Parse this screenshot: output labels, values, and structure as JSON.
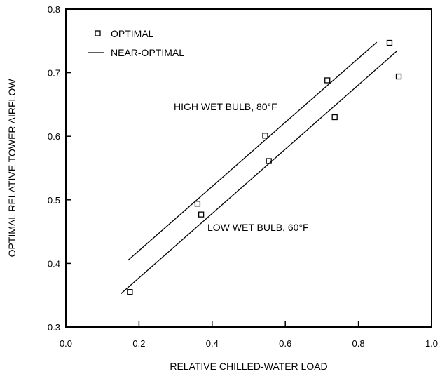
{
  "chart_data": {
    "type": "scatter",
    "title": "",
    "xlabel": "RELATIVE CHILLED-WATER LOAD",
    "ylabel": "OPTIMAL RELATIVE TOWER AIRFLOW",
    "xlim": [
      0.0,
      1.0
    ],
    "ylim": [
      0.3,
      0.8
    ],
    "xticks": [
      0.0,
      0.2,
      0.4,
      0.6,
      0.8,
      1.0
    ],
    "xtick_labels": [
      "0.0",
      "0.2",
      "0.4",
      "0.6",
      "0.8",
      "1.0"
    ],
    "yticks": [
      0.3,
      0.4,
      0.5,
      0.6,
      0.7,
      0.8
    ],
    "ytick_labels": [
      "0.3",
      "0.4",
      "0.5",
      "0.6",
      "0.7",
      "0.8"
    ],
    "grid": false,
    "legend_position": "top-left",
    "legend": [
      {
        "label": "OPTIMAL",
        "marker": "square"
      },
      {
        "label": "NEAR-OPTIMAL",
        "marker": "line"
      }
    ],
    "series": [
      {
        "name": "OPTIMAL",
        "kind": "points",
        "x": [
          0.175,
          0.36,
          0.37,
          0.545,
          0.555,
          0.715,
          0.735,
          0.885,
          0.91
        ],
        "y": [
          0.355,
          0.494,
          0.477,
          0.601,
          0.561,
          0.688,
          0.63,
          0.747,
          0.694
        ]
      },
      {
        "name": "NEAR-OPTIMAL",
        "kind": "line",
        "label": "HIGH WET BULB, 80°F",
        "x": [
          0.17,
          0.85
        ],
        "y": [
          0.405,
          0.748
        ]
      },
      {
        "name": "NEAR-OPTIMAL",
        "kind": "line",
        "label": "LOW WET BULB, 60°F",
        "x": [
          0.15,
          0.905
        ],
        "y": [
          0.352,
          0.734
        ]
      }
    ],
    "annotations": [
      {
        "text": "HIGH WET BULB, 80°F",
        "x": 0.29,
        "y": 0.645
      },
      {
        "text": "LOW WET BULB, 60°F",
        "x": 0.385,
        "y": 0.454
      }
    ]
  }
}
